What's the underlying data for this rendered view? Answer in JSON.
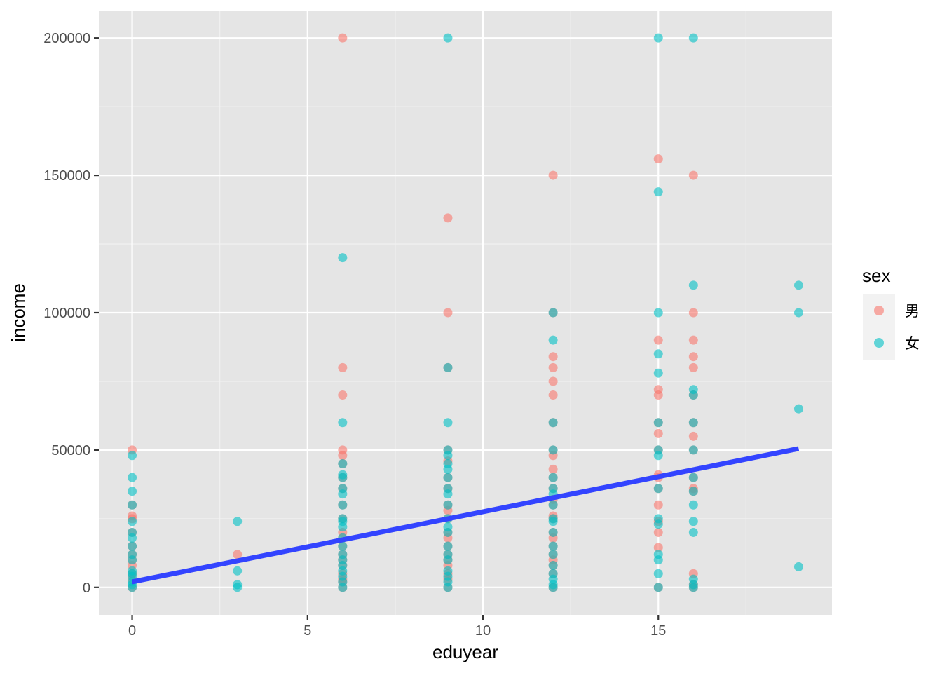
{
  "chart_data": {
    "type": "scatter",
    "xlabel": "eduyear",
    "ylabel": "income",
    "xlim": [
      -0.95,
      19.95
    ],
    "ylim": [
      -10000,
      210000
    ],
    "x_ticks": [
      0,
      5,
      10,
      15
    ],
    "x_tick_labels": [
      "0",
      "5",
      "10",
      "15"
    ],
    "y_ticks": [
      0,
      50000,
      100000,
      150000,
      200000
    ],
    "y_tick_labels": [
      "0",
      "50000",
      "100000",
      "150000",
      "200000"
    ],
    "grid": true,
    "background": "#e5e5e5",
    "legend": {
      "title": "sex",
      "position": "right",
      "entries": [
        {
          "label": "男",
          "color": "#F8766D"
        },
        {
          "label": "女",
          "color": "#00BFC4"
        }
      ]
    },
    "series": [
      {
        "name": "男",
        "color": "#F8766D",
        "points": [
          [
            0,
            50000
          ],
          [
            0,
            30000
          ],
          [
            0,
            26000
          ],
          [
            0,
            25000
          ],
          [
            0,
            20000
          ],
          [
            0,
            15000
          ],
          [
            0,
            12000
          ],
          [
            0,
            10000
          ],
          [
            0,
            8000
          ],
          [
            0,
            5000
          ],
          [
            0,
            3000
          ],
          [
            0,
            0
          ],
          [
            3,
            12000
          ],
          [
            6,
            200000
          ],
          [
            6,
            80000
          ],
          [
            6,
            70000
          ],
          [
            6,
            50000
          ],
          [
            6,
            48000
          ],
          [
            6,
            45000
          ],
          [
            6,
            40000
          ],
          [
            6,
            36000
          ],
          [
            6,
            30000
          ],
          [
            6,
            25000
          ],
          [
            6,
            20000
          ],
          [
            6,
            18000
          ],
          [
            6,
            15000
          ],
          [
            6,
            12000
          ],
          [
            6,
            10000
          ],
          [
            6,
            8000
          ],
          [
            6,
            5000
          ],
          [
            6,
            3000
          ],
          [
            6,
            2000
          ],
          [
            6,
            0
          ],
          [
            9,
            134500
          ],
          [
            9,
            100000
          ],
          [
            9,
            80000
          ],
          [
            9,
            50000
          ],
          [
            9,
            46000
          ],
          [
            9,
            40000
          ],
          [
            9,
            36000
          ],
          [
            9,
            30000
          ],
          [
            9,
            28000
          ],
          [
            9,
            25000
          ],
          [
            9,
            20000
          ],
          [
            9,
            18000
          ],
          [
            9,
            15000
          ],
          [
            9,
            12000
          ],
          [
            9,
            10000
          ],
          [
            9,
            8000
          ],
          [
            9,
            5000
          ],
          [
            9,
            3000
          ],
          [
            9,
            0
          ],
          [
            12,
            150000
          ],
          [
            12,
            100000
          ],
          [
            12,
            84000
          ],
          [
            12,
            80000
          ],
          [
            12,
            75000
          ],
          [
            12,
            70000
          ],
          [
            12,
            60000
          ],
          [
            12,
            50000
          ],
          [
            12,
            48000
          ],
          [
            12,
            43000
          ],
          [
            12,
            40000
          ],
          [
            12,
            36000
          ],
          [
            12,
            32000
          ],
          [
            12,
            30000
          ],
          [
            12,
            26000
          ],
          [
            12,
            25000
          ],
          [
            12,
            20000
          ],
          [
            12,
            18000
          ],
          [
            12,
            15000
          ],
          [
            12,
            12000
          ],
          [
            12,
            10000
          ],
          [
            12,
            8000
          ],
          [
            12,
            5000
          ],
          [
            12,
            0
          ],
          [
            15,
            156000
          ],
          [
            15,
            90000
          ],
          [
            15,
            72000
          ],
          [
            15,
            70000
          ],
          [
            15,
            60000
          ],
          [
            15,
            56000
          ],
          [
            15,
            50000
          ],
          [
            15,
            41000
          ],
          [
            15,
            40000
          ],
          [
            15,
            36000
          ],
          [
            15,
            30000
          ],
          [
            15,
            24000
          ],
          [
            15,
            20000
          ],
          [
            15,
            14500
          ],
          [
            15,
            0
          ],
          [
            16,
            150000
          ],
          [
            16,
            100000
          ],
          [
            16,
            90000
          ],
          [
            16,
            84000
          ],
          [
            16,
            80000
          ],
          [
            16,
            70000
          ],
          [
            16,
            60000
          ],
          [
            16,
            55000
          ],
          [
            16,
            50000
          ],
          [
            16,
            40000
          ],
          [
            16,
            36000
          ],
          [
            16,
            35000
          ],
          [
            16,
            5000
          ],
          [
            16,
            1000
          ],
          [
            16,
            0
          ]
        ]
      },
      {
        "name": "女",
        "color": "#00BFC4",
        "points": [
          [
            0,
            48000
          ],
          [
            0,
            40000
          ],
          [
            0,
            35000
          ],
          [
            0,
            30000
          ],
          [
            0,
            24000
          ],
          [
            0,
            20000
          ],
          [
            0,
            18000
          ],
          [
            0,
            15000
          ],
          [
            0,
            12000
          ],
          [
            0,
            10000
          ],
          [
            0,
            6000
          ],
          [
            0,
            5000
          ],
          [
            0,
            4000
          ],
          [
            0,
            2000
          ],
          [
            0,
            1000
          ],
          [
            0,
            0
          ],
          [
            3,
            24000
          ],
          [
            3,
            6000
          ],
          [
            3,
            1000
          ],
          [
            3,
            0
          ],
          [
            6,
            120000
          ],
          [
            6,
            60000
          ],
          [
            6,
            45000
          ],
          [
            6,
            41000
          ],
          [
            6,
            40000
          ],
          [
            6,
            36000
          ],
          [
            6,
            34000
          ],
          [
            6,
            30000
          ],
          [
            6,
            25000
          ],
          [
            6,
            24000
          ],
          [
            6,
            22000
          ],
          [
            6,
            18000
          ],
          [
            6,
            15000
          ],
          [
            6,
            12000
          ],
          [
            6,
            10000
          ],
          [
            6,
            8000
          ],
          [
            6,
            6000
          ],
          [
            6,
            4000
          ],
          [
            6,
            2000
          ],
          [
            6,
            0
          ],
          [
            9,
            200000
          ],
          [
            9,
            80000
          ],
          [
            9,
            60000
          ],
          [
            9,
            50000
          ],
          [
            9,
            48000
          ],
          [
            9,
            45000
          ],
          [
            9,
            43000
          ],
          [
            9,
            40000
          ],
          [
            9,
            36000
          ],
          [
            9,
            34000
          ],
          [
            9,
            30000
          ],
          [
            9,
            25000
          ],
          [
            9,
            22000
          ],
          [
            9,
            20000
          ],
          [
            9,
            15000
          ],
          [
            9,
            12000
          ],
          [
            9,
            10000
          ],
          [
            9,
            6000
          ],
          [
            9,
            4000
          ],
          [
            9,
            2000
          ],
          [
            9,
            0
          ],
          [
            12,
            100000
          ],
          [
            12,
            90000
          ],
          [
            12,
            60000
          ],
          [
            12,
            50000
          ],
          [
            12,
            40000
          ],
          [
            12,
            36000
          ],
          [
            12,
            34000
          ],
          [
            12,
            30000
          ],
          [
            12,
            25000
          ],
          [
            12,
            24000
          ],
          [
            12,
            20000
          ],
          [
            12,
            15000
          ],
          [
            12,
            12000
          ],
          [
            12,
            8000
          ],
          [
            12,
            5000
          ],
          [
            12,
            3000
          ],
          [
            12,
            1000
          ],
          [
            12,
            0
          ],
          [
            15,
            200000
          ],
          [
            15,
            144000
          ],
          [
            15,
            100000
          ],
          [
            15,
            85000
          ],
          [
            15,
            78000
          ],
          [
            15,
            60000
          ],
          [
            15,
            50000
          ],
          [
            15,
            48000
          ],
          [
            15,
            36000
          ],
          [
            15,
            25000
          ],
          [
            15,
            23000
          ],
          [
            15,
            12000
          ],
          [
            15,
            10000
          ],
          [
            15,
            5000
          ],
          [
            15,
            0
          ],
          [
            16,
            200000
          ],
          [
            16,
            110000
          ],
          [
            16,
            72000
          ],
          [
            16,
            70000
          ],
          [
            16,
            60000
          ],
          [
            16,
            50000
          ],
          [
            16,
            40000
          ],
          [
            16,
            35000
          ],
          [
            16,
            30000
          ],
          [
            16,
            24000
          ],
          [
            16,
            20000
          ],
          [
            16,
            3000
          ],
          [
            16,
            1000
          ],
          [
            16,
            0
          ],
          [
            19,
            110000
          ],
          [
            19,
            100000
          ],
          [
            19,
            65000
          ],
          [
            19,
            7500
          ]
        ]
      }
    ],
    "fit_line": {
      "type": "linear",
      "color": "#3344FF",
      "x": [
        0,
        19
      ],
      "y": [
        2000,
        50500
      ]
    }
  }
}
